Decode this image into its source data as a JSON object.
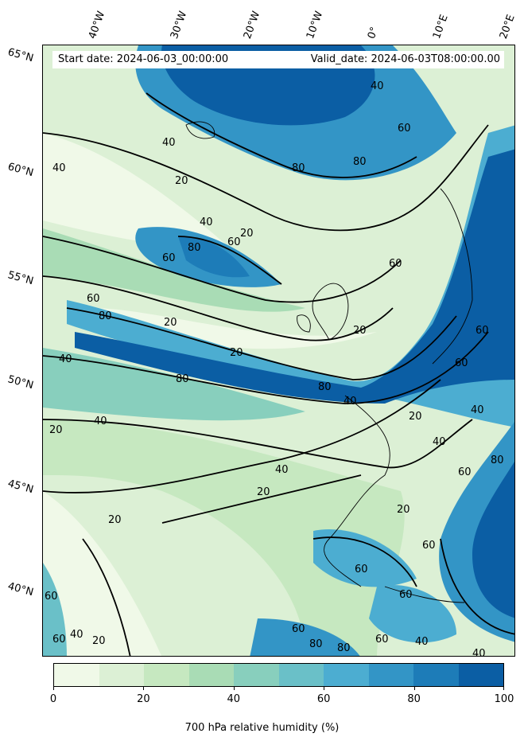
{
  "header": {
    "start_date": "Start date: 2024-06-03_00:00:00",
    "valid_date": "Valid_date: 2024-06-03T08:00:00.00"
  },
  "map": {
    "lon_labels": [
      "40°W",
      "30°W",
      "20°W",
      "10°W",
      "0°",
      "10°E",
      "20°E"
    ],
    "lat_labels": [
      "65°N",
      "60°N",
      "55°N",
      "50°N",
      "45°N",
      "40°N"
    ],
    "contour_labels": [
      "40",
      "60",
      "80",
      "20"
    ]
  },
  "colorbar": {
    "title": "700 hPa relative humidity (%)",
    "tick_labels": [
      "0",
      "20",
      "40",
      "60",
      "80",
      "100"
    ],
    "levels": [
      0,
      10,
      20,
      30,
      40,
      50,
      60,
      70,
      80,
      90,
      100
    ],
    "colors": [
      "#f0f9e8",
      "#dcf0d5",
      "#c6e8c0",
      "#a9dcb5",
      "#88cfbd",
      "#6ac0c8",
      "#4cadd1",
      "#3395c6",
      "#1d7cb8",
      "#0b5ea4"
    ]
  }
}
